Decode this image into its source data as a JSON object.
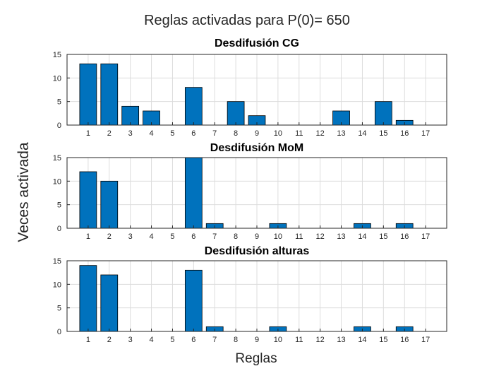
{
  "figure": {
    "suptitle": "Reglas activadas para P(0)= 650",
    "xlabel": "Reglas",
    "ylabel": "Veces activada",
    "bar_color": "#0072BD"
  },
  "chart_data": [
    {
      "type": "bar",
      "title": "Desdifusión CG",
      "categories": [
        "1",
        "2",
        "3",
        "4",
        "5",
        "6",
        "7",
        "8",
        "9",
        "10",
        "11",
        "12",
        "13",
        "14",
        "15",
        "16",
        "17"
      ],
      "values": [
        13,
        13,
        4,
        3,
        0,
        8,
        0,
        5,
        2,
        0,
        0,
        0,
        3,
        0,
        5,
        1,
        0
      ],
      "ylim": [
        0,
        15
      ],
      "yticks": [
        0,
        5,
        10,
        15
      ],
      "grid": true
    },
    {
      "type": "bar",
      "title": "Desdifusión MoM",
      "categories": [
        "1",
        "2",
        "3",
        "4",
        "5",
        "6",
        "7",
        "8",
        "9",
        "10",
        "11",
        "12",
        "13",
        "14",
        "15",
        "16",
        "17"
      ],
      "values": [
        12,
        10,
        0,
        0,
        0,
        15,
        1,
        0,
        0,
        1,
        0,
        0,
        0,
        1,
        0,
        1,
        0
      ],
      "ylim": [
        0,
        15
      ],
      "yticks": [
        0,
        5,
        10,
        15
      ],
      "grid": true
    },
    {
      "type": "bar",
      "title": "Desdifusión alturas",
      "categories": [
        "1",
        "2",
        "3",
        "4",
        "5",
        "6",
        "7",
        "8",
        "9",
        "10",
        "11",
        "12",
        "13",
        "14",
        "15",
        "16",
        "17"
      ],
      "values": [
        14,
        12,
        0,
        0,
        0,
        13,
        1,
        0,
        0,
        1,
        0,
        0,
        0,
        1,
        0,
        1,
        0
      ],
      "ylim": [
        0,
        15
      ],
      "yticks": [
        0,
        5,
        10,
        15
      ],
      "grid": true
    }
  ]
}
